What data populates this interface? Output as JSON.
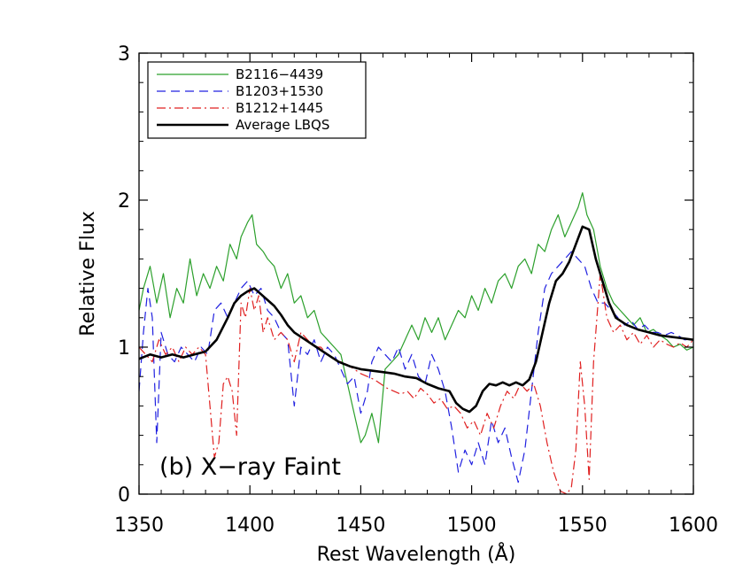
{
  "chart_data": {
    "type": "line",
    "title": "",
    "xlabel": "Rest Wavelength (Å)",
    "ylabel": "Relative Flux",
    "xlim": [
      1350,
      1600
    ],
    "ylim": [
      0,
      3
    ],
    "xticks": [
      1350,
      1400,
      1450,
      1500,
      1550,
      1600
    ],
    "yticks": [
      0,
      1,
      2,
      3
    ],
    "grid": false,
    "legend_position": "top-left",
    "annotation": "(b) X−ray Faint",
    "series": [
      {
        "name": "B2116−4439",
        "color": "#2ca02c",
        "style": "solid",
        "x": [
          1350,
          1352,
          1355,
          1358,
          1361,
          1364,
          1367,
          1370,
          1373,
          1376,
          1379,
          1382,
          1385,
          1388,
          1391,
          1394,
          1396,
          1399,
          1401,
          1403,
          1406,
          1408,
          1411,
          1414,
          1417,
          1420,
          1423,
          1426,
          1429,
          1432,
          1435,
          1438,
          1441,
          1444,
          1447,
          1450,
          1452,
          1455,
          1458,
          1461,
          1464,
          1467,
          1470,
          1473,
          1476,
          1479,
          1482,
          1485,
          1488,
          1491,
          1494,
          1497,
          1500,
          1503,
          1506,
          1509,
          1512,
          1515,
          1518,
          1521,
          1524,
          1527,
          1530,
          1533,
          1536,
          1539,
          1542,
          1545,
          1548,
          1550,
          1552,
          1555,
          1558,
          1561,
          1564,
          1567,
          1570,
          1573,
          1576,
          1579,
          1582,
          1585,
          1588,
          1591,
          1594,
          1597,
          1600
        ],
        "y": [
          1.25,
          1.4,
          1.55,
          1.3,
          1.5,
          1.2,
          1.4,
          1.3,
          1.6,
          1.35,
          1.5,
          1.4,
          1.55,
          1.45,
          1.7,
          1.6,
          1.75,
          1.85,
          1.9,
          1.7,
          1.65,
          1.6,
          1.55,
          1.4,
          1.5,
          1.3,
          1.35,
          1.2,
          1.25,
          1.1,
          1.05,
          1.0,
          0.95,
          0.75,
          0.55,
          0.35,
          0.4,
          0.55,
          0.35,
          0.85,
          0.9,
          0.95,
          1.05,
          1.15,
          1.05,
          1.2,
          1.1,
          1.2,
          1.05,
          1.15,
          1.25,
          1.2,
          1.35,
          1.25,
          1.4,
          1.3,
          1.45,
          1.5,
          1.4,
          1.55,
          1.6,
          1.5,
          1.7,
          1.65,
          1.8,
          1.9,
          1.75,
          1.85,
          1.95,
          2.05,
          1.9,
          1.8,
          1.55,
          1.4,
          1.3,
          1.25,
          1.2,
          1.15,
          1.2,
          1.1,
          1.12,
          1.08,
          1.05,
          1.0,
          1.02,
          0.98,
          1.0
        ]
      },
      {
        "name": "B1203+1530",
        "color": "#2020e0",
        "style": "dashed",
        "x": [
          1350,
          1352,
          1354,
          1356,
          1358,
          1360,
          1363,
          1366,
          1369,
          1372,
          1375,
          1378,
          1381,
          1384,
          1387,
          1390,
          1393,
          1396,
          1399,
          1402,
          1405,
          1408,
          1411,
          1414,
          1417,
          1420,
          1423,
          1426,
          1429,
          1432,
          1435,
          1438,
          1441,
          1444,
          1447,
          1450,
          1453,
          1455,
          1458,
          1461,
          1464,
          1467,
          1470,
          1473,
          1476,
          1479,
          1482,
          1485,
          1488,
          1491,
          1494,
          1497,
          1500,
          1503,
          1506,
          1509,
          1512,
          1515,
          1518,
          1521,
          1524,
          1527,
          1530,
          1533,
          1536,
          1539,
          1542,
          1545,
          1548,
          1551,
          1554,
          1557,
          1560,
          1563,
          1566,
          1569,
          1572,
          1575,
          1578,
          1581,
          1584,
          1587,
          1590,
          1593,
          1596,
          1600
        ],
        "y": [
          0.7,
          1.1,
          1.4,
          1.2,
          0.35,
          1.1,
          0.95,
          0.9,
          1.0,
          0.95,
          0.9,
          1.0,
          0.95,
          1.25,
          1.3,
          1.2,
          1.3,
          1.4,
          1.45,
          1.35,
          1.4,
          1.25,
          1.2,
          1.1,
          1.05,
          0.6,
          1.0,
          0.95,
          1.05,
          0.9,
          1.0,
          0.95,
          0.85,
          0.75,
          0.8,
          0.55,
          0.7,
          0.9,
          1.0,
          0.95,
          0.9,
          1.0,
          0.85,
          0.95,
          0.8,
          0.75,
          0.95,
          0.85,
          0.7,
          0.45,
          0.15,
          0.3,
          0.2,
          0.35,
          0.2,
          0.5,
          0.35,
          0.45,
          0.25,
          0.08,
          0.3,
          0.7,
          1.1,
          1.4,
          1.5,
          1.55,
          1.6,
          1.65,
          1.6,
          1.55,
          1.4,
          1.3,
          1.3,
          1.25,
          1.2,
          1.15,
          1.18,
          1.12,
          1.15,
          1.1,
          1.1,
          1.08,
          1.1,
          1.08,
          1.05,
          1.05
        ]
      },
      {
        "name": "B1212+1445",
        "color": "#e02020",
        "style": "dashdot",
        "x": [
          1350,
          1353,
          1356,
          1359,
          1362,
          1365,
          1368,
          1371,
          1374,
          1377,
          1380,
          1382,
          1384,
          1386,
          1388,
          1390,
          1392,
          1394,
          1396,
          1398,
          1400,
          1402,
          1404,
          1406,
          1408,
          1411,
          1414,
          1417,
          1420,
          1423,
          1426,
          1429,
          1432,
          1435,
          1438,
          1441,
          1444,
          1447,
          1450,
          1453,
          1456,
          1459,
          1462,
          1465,
          1468,
          1471,
          1474,
          1477,
          1480,
          1483,
          1486,
          1489,
          1492,
          1495,
          1498,
          1501,
          1504,
          1507,
          1510,
          1513,
          1516,
          1519,
          1522,
          1525,
          1528,
          1531,
          1534,
          1537,
          1540,
          1543,
          1545,
          1547,
          1549,
          1551,
          1553,
          1555,
          1558,
          1561,
          1564,
          1567,
          1570,
          1573,
          1576,
          1579,
          1582,
          1585,
          1588,
          1591,
          1594,
          1597,
          1600
        ],
        "y": [
          1.0,
          0.95,
          0.9,
          1.05,
          0.95,
          1.0,
          0.9,
          1.0,
          0.95,
          1.0,
          0.95,
          0.6,
          0.25,
          0.35,
          0.75,
          0.8,
          0.7,
          0.4,
          1.3,
          1.2,
          1.4,
          1.25,
          1.35,
          1.1,
          1.2,
          1.05,
          1.1,
          1.05,
          0.9,
          1.1,
          1.05,
          1.0,
          1.0,
          0.95,
          0.92,
          0.9,
          0.88,
          0.85,
          0.82,
          0.8,
          0.78,
          0.75,
          0.72,
          0.7,
          0.68,
          0.7,
          0.65,
          0.72,
          0.68,
          0.62,
          0.65,
          0.58,
          0.6,
          0.55,
          0.45,
          0.5,
          0.4,
          0.55,
          0.45,
          0.6,
          0.7,
          0.65,
          0.75,
          0.7,
          0.75,
          0.6,
          0.35,
          0.15,
          0.02,
          0.0,
          0.05,
          0.3,
          0.9,
          0.6,
          0.1,
          0.9,
          1.5,
          1.2,
          1.1,
          1.15,
          1.05,
          1.1,
          1.02,
          1.08,
          1.0,
          1.05,
          1.02,
          1.0,
          1.03,
          1.0,
          1.05
        ]
      },
      {
        "name": "Average LBQS",
        "color": "#000000",
        "style": "solid-bold",
        "x": [
          1350,
          1355,
          1360,
          1365,
          1370,
          1375,
          1380,
          1385,
          1390,
          1393,
          1396,
          1399,
          1402,
          1405,
          1408,
          1411,
          1414,
          1417,
          1420,
          1425,
          1430,
          1435,
          1440,
          1445,
          1450,
          1455,
          1460,
          1465,
          1470,
          1475,
          1480,
          1485,
          1490,
          1493,
          1496,
          1499,
          1502,
          1505,
          1508,
          1511,
          1514,
          1517,
          1520,
          1523,
          1526,
          1529,
          1532,
          1535,
          1538,
          1541,
          1544,
          1547,
          1550,
          1553,
          1556,
          1559,
          1562,
          1565,
          1570,
          1575,
          1580,
          1585,
          1590,
          1595,
          1600
        ],
        "y": [
          0.92,
          0.95,
          0.93,
          0.95,
          0.93,
          0.95,
          0.97,
          1.05,
          1.2,
          1.3,
          1.35,
          1.38,
          1.4,
          1.36,
          1.32,
          1.28,
          1.22,
          1.15,
          1.1,
          1.05,
          1.0,
          0.95,
          0.9,
          0.87,
          0.85,
          0.84,
          0.83,
          0.82,
          0.8,
          0.79,
          0.75,
          0.72,
          0.7,
          0.62,
          0.58,
          0.56,
          0.6,
          0.7,
          0.75,
          0.74,
          0.76,
          0.74,
          0.76,
          0.74,
          0.78,
          0.9,
          1.1,
          1.3,
          1.45,
          1.5,
          1.58,
          1.7,
          1.82,
          1.8,
          1.6,
          1.45,
          1.3,
          1.2,
          1.15,
          1.12,
          1.1,
          1.08,
          1.07,
          1.06,
          1.05
        ]
      }
    ]
  }
}
